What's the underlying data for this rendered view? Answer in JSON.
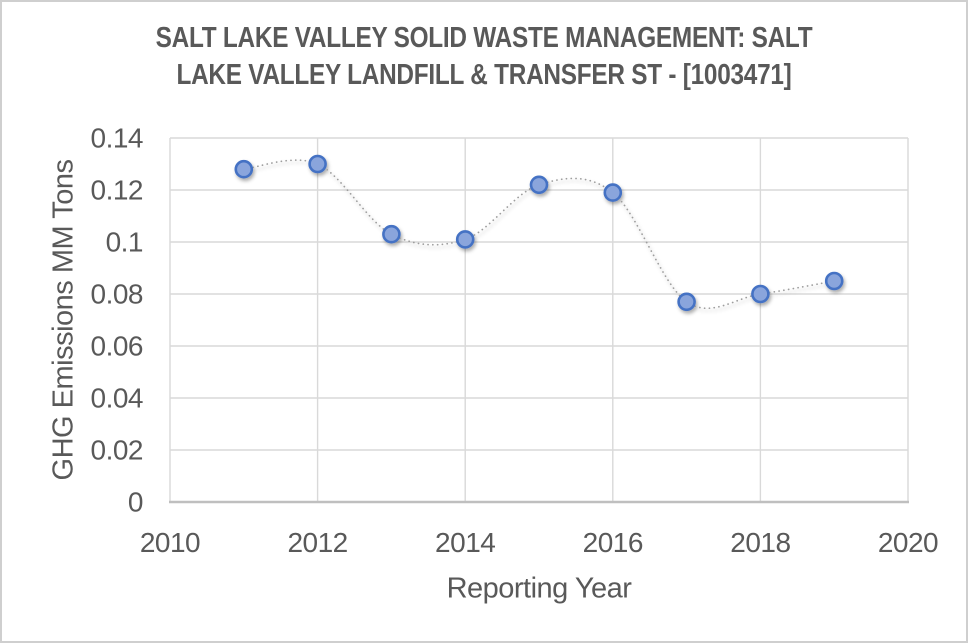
{
  "chart_data": {
    "type": "scatter",
    "title": "SALT LAKE VALLEY SOLID WASTE MANAGEMENT: SALT LAKE VALLEY LANDFILL & TRANSFER ST - [1003471]",
    "title_lines": [
      "SALT LAKE VALLEY SOLID WASTE MANAGEMENT: SALT",
      "LAKE VALLEY LANDFILL & TRANSFER ST - [1003471]"
    ],
    "xlabel": "Reporting Year",
    "ylabel": "GHG Emissions MM Tons",
    "x": [
      2011,
      2012,
      2013,
      2014,
      2015,
      2016,
      2017,
      2018,
      2019
    ],
    "values": [
      0.128,
      0.13,
      0.103,
      0.101,
      0.122,
      0.119,
      0.077,
      0.08,
      0.085
    ],
    "xlim": [
      2010,
      2020
    ],
    "ylim": [
      0,
      0.14
    ],
    "x_tick_labels": [
      "2010",
      "2012",
      "2014",
      "2016",
      "2018",
      "2020"
    ],
    "y_tick_labels": [
      "0",
      "0.02",
      "0.04",
      "0.06",
      "0.08",
      "0.1",
      "0.12",
      "0.14"
    ],
    "grid": true,
    "legend_position": "none",
    "line": {
      "style": "dotted",
      "smooth": true,
      "color": "#9e9e9e"
    },
    "marker": {
      "shape": "circle",
      "fill": "#8aa5dc",
      "stroke": "#4472c4"
    },
    "colors": {
      "text": "#595959",
      "grid": "#d9d9d9",
      "axis_line": "#bfbfbf",
      "background": "#ffffff",
      "frame_border": "#cfcfcf"
    }
  }
}
